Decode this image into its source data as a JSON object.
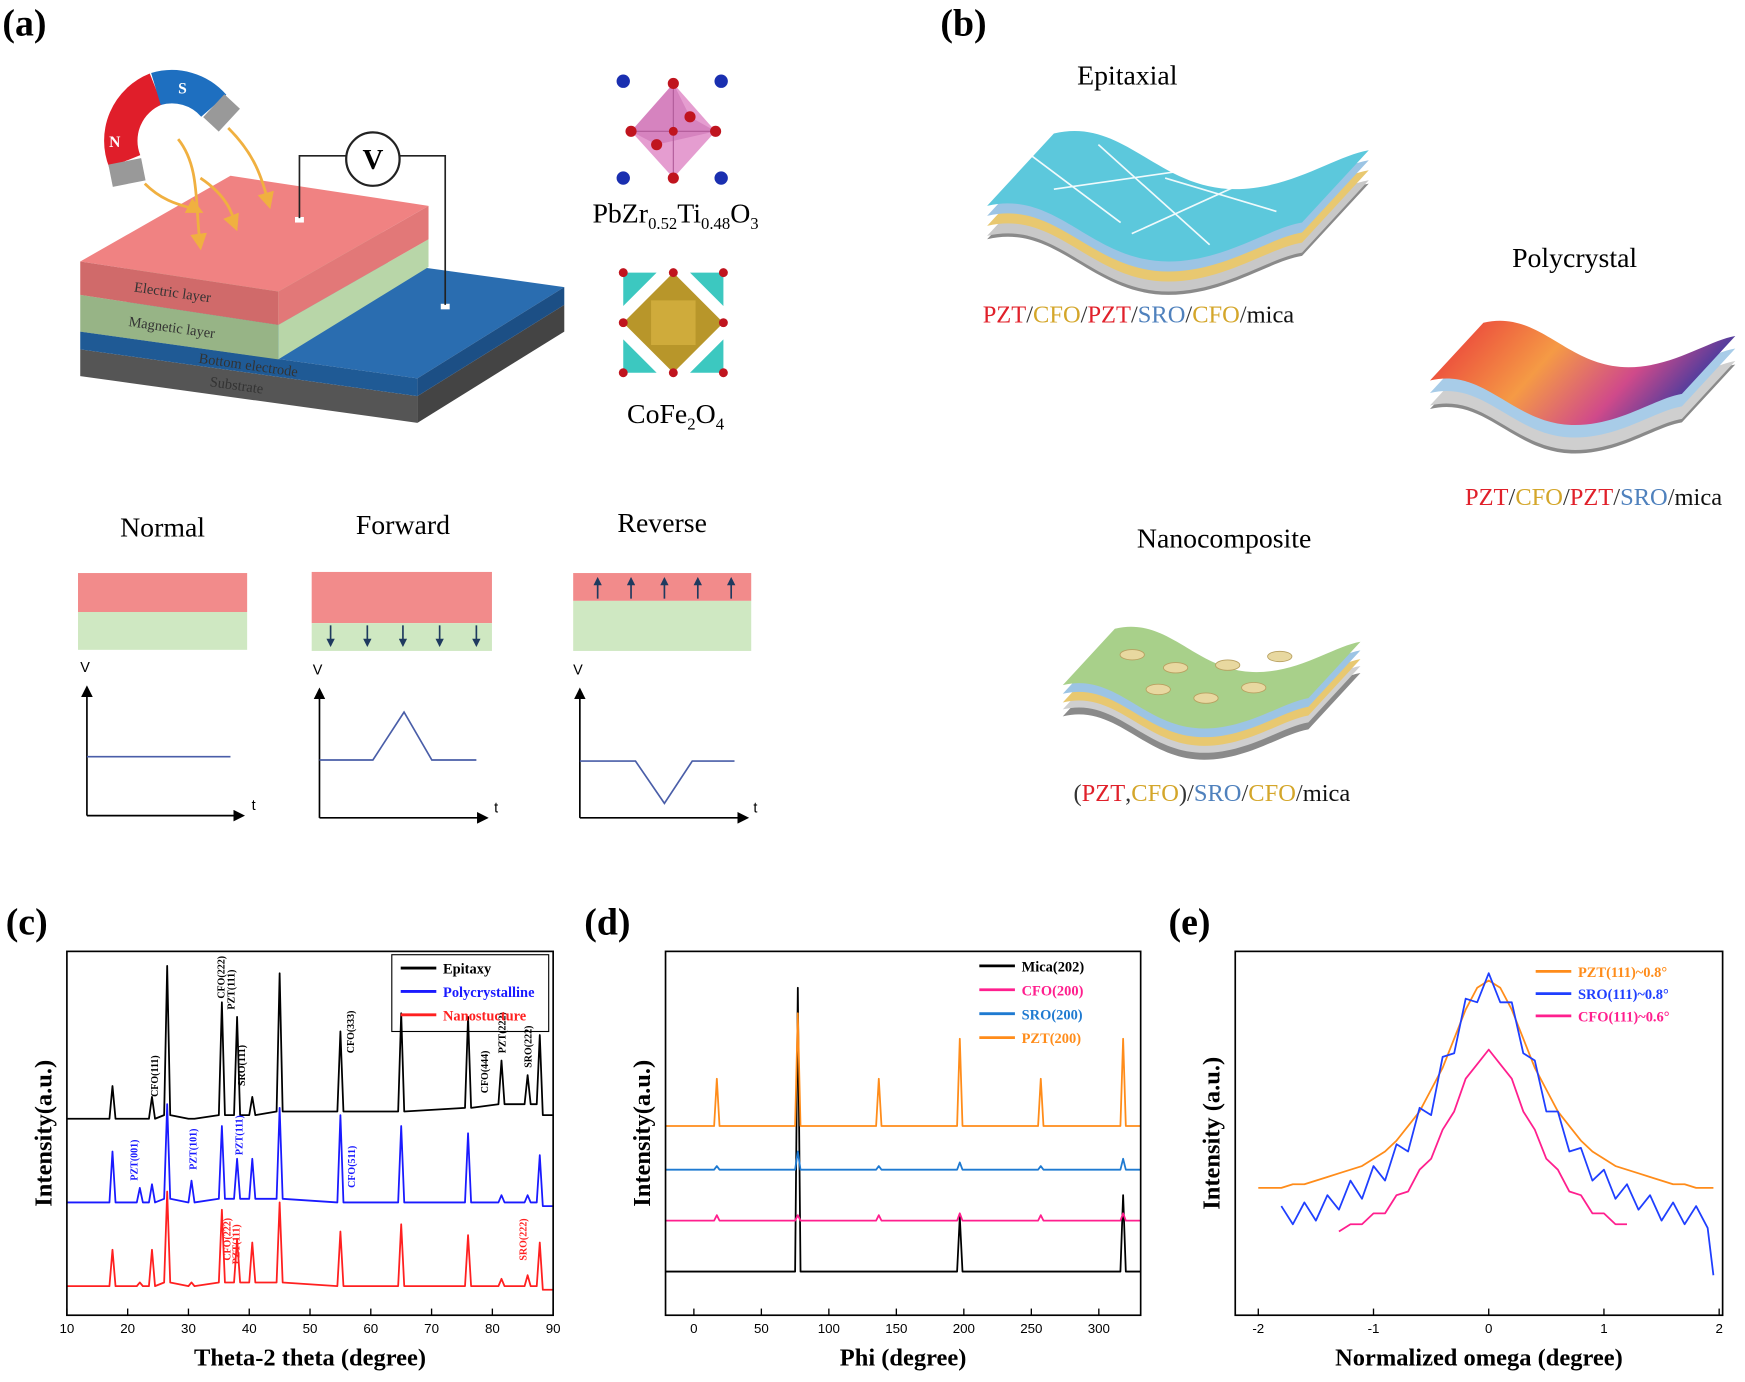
{
  "panel_labels": [
    "(a)",
    "(b)",
    "(c)",
    "(d)",
    "(e)"
  ],
  "panel_a": {
    "magnet": {
      "north": "N",
      "south": "S"
    },
    "voltmeter": "V",
    "layers": [
      "Electric layer",
      "Magnetic layer",
      "Bottom electrode",
      "Substrate"
    ],
    "crystals": [
      {
        "parts": [
          "PbZr",
          "0.52",
          "Ti",
          "0.48",
          "O",
          "3"
        ]
      },
      {
        "parts": [
          "CoFe",
          "2",
          "O",
          "4"
        ]
      }
    ],
    "modes": [
      {
        "title": "Normal",
        "y_axis": "V",
        "x_axis": "t"
      },
      {
        "title": "Forward",
        "y_axis": "V",
        "x_axis": "t"
      },
      {
        "title": "Reverse",
        "y_axis": "V",
        "x_axis": "t"
      }
    ]
  },
  "panel_b": {
    "structures": [
      {
        "title": "Epitaxial",
        "stack": [
          {
            "text": "PZT",
            "color": "#e0202a"
          },
          {
            "text": "/",
            "color": "#333333"
          },
          {
            "text": "CFO",
            "color": "#d4a62a"
          },
          {
            "text": "/",
            "color": "#333333"
          },
          {
            "text": "PZT",
            "color": "#e0202a"
          },
          {
            "text": "/",
            "color": "#333333"
          },
          {
            "text": "SRO",
            "color": "#4f81bd"
          },
          {
            "text": "/",
            "color": "#333333"
          },
          {
            "text": "CFO",
            "color": "#d4a62a"
          },
          {
            "text": "/",
            "color": "#333333"
          },
          {
            "text": "mica",
            "color": "#111111"
          }
        ]
      },
      {
        "title": "Polycrystal",
        "stack": [
          {
            "text": "PZT",
            "color": "#e0202a"
          },
          {
            "text": "/",
            "color": "#333333"
          },
          {
            "text": "CFO",
            "color": "#d4a62a"
          },
          {
            "text": "/",
            "color": "#333333"
          },
          {
            "text": "PZT",
            "color": "#e0202a"
          },
          {
            "text": "/",
            "color": "#333333"
          },
          {
            "text": "SRO",
            "color": "#4f81bd"
          },
          {
            "text": "/",
            "color": "#333333"
          },
          {
            "text": "mica",
            "color": "#111111"
          }
        ]
      },
      {
        "title": "Nanocomposite",
        "stack": [
          {
            "text": "(",
            "color": "#333333"
          },
          {
            "text": "PZT",
            "color": "#e0202a"
          },
          {
            "text": ",",
            "color": "#333333"
          },
          {
            "text": "CFO",
            "color": "#d4a62a"
          },
          {
            "text": ")",
            "color": "#333333"
          },
          {
            "text": "/",
            "color": "#333333"
          },
          {
            "text": "SRO",
            "color": "#4f81bd"
          },
          {
            "text": "/",
            "color": "#333333"
          },
          {
            "text": "CFO",
            "color": "#d4a62a"
          },
          {
            "text": "/",
            "color": "#333333"
          },
          {
            "text": "mica",
            "color": "#111111"
          }
        ]
      }
    ]
  },
  "chart_data": [
    {
      "type": "line",
      "x_label": "Theta-2 theta (degree)",
      "y_label": "Intensity(a.u.)",
      "xlim": [
        10,
        90
      ],
      "xticks": [
        10,
        20,
        30,
        40,
        50,
        60,
        70,
        80,
        90
      ],
      "ylim": [
        0,
        10
      ],
      "legend": "upper right",
      "legend_frame": true,
      "x": [
        10,
        17,
        17.5,
        18,
        21.5,
        22,
        22.5,
        23.5,
        24,
        24.5,
        26,
        26.5,
        27,
        30,
        30.5,
        31,
        35,
        35.5,
        36,
        37.5,
        38,
        38.5,
        40,
        40.5,
        41,
        44.5,
        45,
        45.5,
        54.5,
        55,
        55.5,
        64.5,
        65,
        65.5,
        75.5,
        76,
        76.5,
        81,
        81.5,
        82,
        85.3,
        85.8,
        86.3,
        87.3,
        87.8,
        88.3,
        90
      ],
      "series": [
        {
          "name": "Epitaxy",
          "color": "#000000",
          "values": [
            5.4,
            5.4,
            6.3,
            5.4,
            5.4,
            5.4,
            5.4,
            5.4,
            6.0,
            5.4,
            5.5,
            9.6,
            5.5,
            5.4,
            5.4,
            5.4,
            5.5,
            8.6,
            5.5,
            5.5,
            8.2,
            5.5,
            5.5,
            6.0,
            5.5,
            5.6,
            9.4,
            5.6,
            5.6,
            7.8,
            5.6,
            5.6,
            8.3,
            5.6,
            5.7,
            8.2,
            5.7,
            5.8,
            7.0,
            5.8,
            5.8,
            6.6,
            5.8,
            5.8,
            7.7,
            5.5,
            5.5
          ]
        },
        {
          "name": "Polycrystalline",
          "color": "#1a1aff",
          "values": [
            3.1,
            3.1,
            4.5,
            3.1,
            3.1,
            3.5,
            3.1,
            3.1,
            3.6,
            3.1,
            3.2,
            5.8,
            3.2,
            3.1,
            3.7,
            3.1,
            3.2,
            5.2,
            3.2,
            3.2,
            4.3,
            3.2,
            3.2,
            4.3,
            3.2,
            3.2,
            5.7,
            3.2,
            3.1,
            5.5,
            3.1,
            3.1,
            5.2,
            3.1,
            3.1,
            5.0,
            3.1,
            3.1,
            3.3,
            3.1,
            3.1,
            3.3,
            3.1,
            3.1,
            4.4,
            3.0,
            3.0
          ]
        },
        {
          "name": "Nanostucture",
          "color": "#ff2020",
          "values": [
            0.8,
            0.8,
            1.8,
            0.8,
            0.8,
            0.9,
            0.8,
            0.8,
            1.8,
            0.8,
            0.9,
            3.4,
            0.9,
            0.8,
            0.9,
            0.8,
            0.9,
            2.9,
            0.9,
            0.9,
            2.1,
            0.9,
            0.9,
            2.0,
            0.9,
            0.9,
            3.1,
            0.9,
            0.8,
            2.3,
            0.8,
            0.8,
            2.5,
            0.8,
            0.8,
            2.2,
            0.8,
            0.8,
            1.0,
            0.8,
            0.8,
            1.1,
            0.8,
            0.8,
            2.0,
            0.7,
            0.7
          ]
        }
      ],
      "annotations": [
        {
          "text": "CFO(111)",
          "x": 25,
          "y": 6.0,
          "color": "#000000"
        },
        {
          "text": "CFO(222)",
          "x": 35.9,
          "y": 8.7,
          "color": "#000000"
        },
        {
          "text": "PZT(111)",
          "x": 37.6,
          "y": 8.4,
          "color": "#000000"
        },
        {
          "text": "SRO(111)",
          "x": 39.3,
          "y": 6.3,
          "color": "#000000"
        },
        {
          "text": "CFO(333)",
          "x": 57.2,
          "y": 7.2,
          "color": "#000000"
        },
        {
          "text": "CFO(444)",
          "x": 79.3,
          "y": 6.1,
          "color": "#000000"
        },
        {
          "text": "PZT(222)",
          "x": 82.2,
          "y": 7.2,
          "color": "#000000"
        },
        {
          "text": "SRO(222)",
          "x": 86.4,
          "y": 6.8,
          "color": "#000000"
        },
        {
          "text": "PZT(001)",
          "x": 21.6,
          "y": 3.7,
          "color": "#1a1aff"
        },
        {
          "text": "PZT(101)",
          "x": 31.3,
          "y": 4.0,
          "color": "#1a1aff"
        },
        {
          "text": "PZT(111)",
          "x": 38.9,
          "y": 4.4,
          "color": "#1a1aff"
        },
        {
          "text": "CFO(511)",
          "x": 57.4,
          "y": 3.5,
          "color": "#1a1aff"
        },
        {
          "text": "CFO(222)",
          "x": 36.9,
          "y": 1.5,
          "color": "#ff2020"
        },
        {
          "text": "PZT(111)",
          "x": 38.4,
          "y": 1.4,
          "color": "#ff2020"
        },
        {
          "text": "SRO(222)",
          "x": 85.6,
          "y": 1.5,
          "color": "#ff2020"
        }
      ]
    },
    {
      "type": "line",
      "x_label": "Phi (degree)",
      "y_label": "Intensity(a.u.)",
      "xlim": [
        -21,
        331
      ],
      "xticks": [
        0,
        50,
        100,
        150,
        200,
        250,
        300
      ],
      "ylim": [
        0,
        10
      ],
      "legend": "upper right",
      "legend_frame": false,
      "x": [
        -21,
        15,
        17,
        19,
        75,
        77,
        79,
        135,
        137,
        139,
        195,
        197,
        199,
        255,
        257,
        259,
        316,
        318,
        320,
        331
      ],
      "series": [
        {
          "name": "Mica(202)",
          "color": "#000000",
          "values": [
            1.2,
            1.2,
            1.2,
            1.2,
            1.2,
            9.0,
            1.2,
            1.2,
            1.2,
            1.2,
            1.2,
            2.7,
            1.2,
            1.2,
            1.2,
            1.2,
            1.2,
            3.3,
            1.2,
            1.2
          ]
        },
        {
          "name": "CFO(200)",
          "color": "#ff1f8e",
          "values": [
            2.6,
            2.6,
            2.75,
            2.6,
            2.6,
            2.75,
            2.6,
            2.6,
            2.75,
            2.6,
            2.6,
            2.8,
            2.6,
            2.6,
            2.75,
            2.6,
            2.6,
            2.8,
            2.6,
            2.6
          ]
        },
        {
          "name": "SRO(200)",
          "color": "#1f7ad1",
          "values": [
            4.0,
            4.0,
            4.1,
            4.0,
            4.0,
            4.5,
            4.0,
            4.0,
            4.1,
            4.0,
            4.0,
            4.2,
            4.0,
            4.0,
            4.1,
            4.0,
            4.0,
            4.3,
            4.0,
            4.0
          ]
        },
        {
          "name": "PZT(200)",
          "color": "#ff8c1a",
          "values": [
            5.2,
            5.2,
            6.5,
            5.2,
            5.2,
            8.3,
            5.2,
            5.2,
            6.5,
            5.2,
            5.2,
            7.6,
            5.2,
            5.2,
            6.5,
            5.2,
            5.2,
            7.6,
            5.2,
            5.2
          ]
        }
      ]
    },
    {
      "type": "line",
      "x_label": "Normalized omega (degree)",
      "y_label": "Intensity (a.u.)",
      "xlim": [
        -2.2,
        2.03
      ],
      "xticks": [
        -2,
        -1,
        0,
        1,
        2
      ],
      "ylim": [
        0,
        10
      ],
      "legend": "upper right",
      "legend_frame": false,
      "x": [
        -2.0,
        -1.9,
        -1.8,
        -1.7,
        -1.6,
        -1.5,
        -1.4,
        -1.3,
        -1.2,
        -1.1,
        -1.0,
        -0.9,
        -0.8,
        -0.7,
        -0.6,
        -0.5,
        -0.4,
        -0.3,
        -0.2,
        -0.1,
        0,
        0.1,
        0.2,
        0.3,
        0.4,
        0.5,
        0.6,
        0.7,
        0.8,
        0.9,
        1.0,
        1.1,
        1.2,
        1.3,
        1.4,
        1.5,
        1.6,
        1.7,
        1.8,
        1.9,
        1.95
      ],
      "series": [
        {
          "name": "PZT(111)~0.8°",
          "color": "#ff8c1a",
          "values": [
            3.5,
            3.5,
            3.5,
            3.6,
            3.6,
            3.7,
            3.8,
            3.9,
            4.0,
            4.1,
            4.3,
            4.5,
            4.8,
            5.2,
            5.6,
            6.2,
            6.8,
            7.6,
            8.4,
            9.0,
            9.2,
            9.0,
            8.4,
            7.6,
            6.8,
            6.2,
            5.6,
            5.2,
            4.8,
            4.5,
            4.3,
            4.1,
            4.0,
            3.9,
            3.8,
            3.7,
            3.6,
            3.6,
            3.5,
            3.5,
            3.5
          ]
        },
        {
          "name": "SRO(111)~0.8°",
          "color": "#1f3fff",
          "values": [
            null,
            null,
            3.0,
            2.5,
            3.1,
            2.6,
            3.3,
            2.9,
            3.7,
            3.2,
            4.1,
            3.7,
            4.7,
            4.5,
            5.7,
            5.5,
            7.1,
            7.2,
            8.7,
            8.6,
            9.4,
            8.6,
            8.6,
            7.2,
            7.0,
            5.6,
            5.6,
            4.5,
            4.6,
            3.7,
            4.0,
            3.2,
            3.6,
            2.9,
            3.3,
            2.6,
            3.1,
            2.5,
            3.0,
            2.4,
            1.1
          ]
        },
        {
          "name": "CFO(111)~0.6°",
          "color": "#ff1f8e",
          "values": [
            null,
            null,
            null,
            null,
            null,
            null,
            null,
            2.3,
            2.5,
            2.5,
            2.8,
            2.8,
            3.3,
            3.4,
            4.0,
            4.3,
            5.1,
            5.6,
            6.5,
            6.9,
            7.3,
            6.9,
            6.5,
            5.6,
            5.1,
            4.3,
            4.0,
            3.4,
            3.3,
            2.8,
            2.8,
            2.5,
            2.5,
            null,
            null,
            null,
            null,
            null,
            null,
            null,
            null
          ]
        }
      ]
    }
  ]
}
